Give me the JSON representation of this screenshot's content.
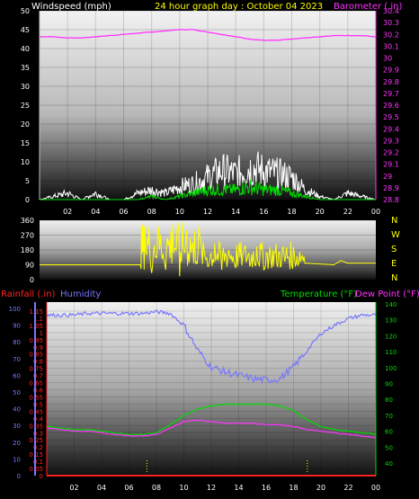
{
  "header": {
    "left": "Windspeed (mph)",
    "center": "24 hour graph day : October 04 2023",
    "right": "Barometer (.in)"
  },
  "chart_data": [
    {
      "type": "line",
      "panel": "wind-barometer",
      "x_ticks": [
        "02",
        "04",
        "06",
        "08",
        "10",
        "12",
        "14",
        "16",
        "18",
        "20",
        "22",
        "00"
      ],
      "x": [
        0,
        1,
        2,
        3,
        4,
        5,
        6,
        7,
        8,
        9,
        10,
        11,
        12,
        13,
        14,
        15,
        16,
        17,
        18,
        19,
        20,
        21,
        22,
        23,
        24
      ],
      "left_axis": {
        "label": "Windspeed (mph)",
        "ticks": [
          0,
          5,
          10,
          15,
          20,
          25,
          30,
          35,
          40,
          45,
          50
        ],
        "range": [
          0,
          50
        ]
      },
      "right_axis": {
        "label": "Barometer (.in)",
        "ticks": [
          "28.8",
          "28.9",
          "29",
          "29.1",
          "29.2",
          "29.3",
          "29.4",
          "29.5",
          "29.6",
          "29.7",
          "29.8",
          "29.9",
          "30",
          "30.1",
          "30.2",
          "30.3",
          "30.4"
        ],
        "range": [
          28.8,
          30.4
        ]
      },
      "series": [
        {
          "name": "Barometer (.in)",
          "axis": "right",
          "color": "#ff33ff",
          "values": [
            30.18,
            30.18,
            30.17,
            30.17,
            30.18,
            30.19,
            30.2,
            30.21,
            30.22,
            30.23,
            30.24,
            30.24,
            30.22,
            30.2,
            30.18,
            30.16,
            30.15,
            30.15,
            30.16,
            30.17,
            30.18,
            30.19,
            30.19,
            30.19,
            30.18
          ]
        },
        {
          "name": "wind-gust",
          "axis": "left",
          "color": "#ffffff",
          "values": [
            0,
            1,
            2,
            0,
            2,
            0,
            0,
            2,
            3,
            2,
            4,
            5,
            7,
            9,
            8,
            10,
            9,
            8,
            7,
            3,
            1,
            0,
            2,
            1,
            0
          ]
        },
        {
          "name": "wind-avg",
          "axis": "left",
          "color": "#00dd00",
          "values": [
            0,
            0,
            0,
            0,
            0,
            0,
            0,
            0,
            1,
            0,
            1,
            2,
            3,
            3,
            3,
            4,
            3,
            3,
            2,
            1,
            0,
            0,
            0,
            0,
            0
          ]
        }
      ]
    },
    {
      "type": "line",
      "panel": "wind-direction",
      "x_ticks": [],
      "left_axis": {
        "ticks": [
          0,
          90,
          180,
          270,
          360
        ],
        "range": [
          0,
          360
        ]
      },
      "right_labels": [
        "N",
        "W",
        "S",
        "E",
        "N"
      ],
      "series": [
        {
          "name": "wind-direction",
          "color": "#ffff00",
          "x": [
            0,
            7.2,
            7.5,
            8,
            8.5,
            9,
            9.5,
            10,
            10.5,
            11,
            11.5,
            12,
            12.5,
            13,
            13.5,
            14,
            14.5,
            15,
            15.5,
            16,
            16.5,
            17,
            17.5,
            18,
            18.5,
            19,
            20,
            21,
            21.5,
            22,
            24
          ],
          "values": [
            90,
            90,
            320,
            40,
            300,
            60,
            330,
            20,
            300,
            100,
            250,
            80,
            220,
            60,
            180,
            70,
            150,
            80,
            200,
            60,
            120,
            80,
            110,
            90,
            100,
            100,
            95,
            90,
            115,
            100,
            100
          ]
        }
      ]
    },
    {
      "type": "line",
      "panel": "rain-humidity-temperature",
      "x_ticks": [
        "02",
        "04",
        "06",
        "08",
        "10",
        "12",
        "14",
        "16",
        "18",
        "20",
        "22",
        "00"
      ],
      "left_label_rain": "Rainfall (.in)",
      "left_label_humidity": "Humidity",
      "right_label_temp": "Temperature (°F)",
      "right_label_dew": "Dew Point (°F)",
      "rain_axis": {
        "ticks": [
          "0",
          "0.05",
          "0.1",
          "0.15",
          "0.2",
          "0.25",
          "0.3",
          "0.35",
          "0.4",
          "0.45",
          "0.5",
          "0.55",
          "0.6",
          "0.65",
          "0.7",
          "0.75",
          "0.8",
          "0.85",
          "0.9",
          "0.95",
          "1",
          "1.05",
          "1.1",
          "1.15"
        ],
        "range": [
          0,
          1.15
        ]
      },
      "humidity_axis": {
        "ticks": [
          0,
          10,
          20,
          30,
          40,
          50,
          60,
          70,
          80,
          90,
          100
        ],
        "range": [
          0,
          100
        ]
      },
      "temp_axis": {
        "ticks": [
          40,
          50,
          60,
          70,
          80,
          90,
          100,
          110,
          120,
          130,
          140
        ],
        "range": [
          40,
          140
        ]
      },
      "series": [
        {
          "name": "Humidity",
          "axis": "humidity",
          "color": "#7777ff",
          "values": [
            96,
            96,
            96,
            97,
            97,
            97,
            97,
            97,
            98,
            97,
            90,
            75,
            65,
            62,
            60,
            58,
            57,
            58,
            65,
            75,
            85,
            90,
            94,
            96,
            96
          ]
        },
        {
          "name": "Temperature (°F)",
          "axis": "temp",
          "color": "#00dd00",
          "values": [
            63,
            62,
            61,
            61,
            60,
            59,
            58,
            58,
            59,
            64,
            70,
            74,
            76,
            77,
            77,
            77,
            77,
            76,
            73,
            67,
            63,
            61,
            60,
            59,
            58
          ]
        },
        {
          "name": "Dew Point (°F)",
          "axis": "temp",
          "color": "#ff33ff",
          "values": [
            62,
            61,
            60,
            60,
            59,
            58,
            57,
            57,
            58,
            62,
            66,
            67,
            66,
            65,
            65,
            65,
            64,
            64,
            63,
            61,
            60,
            59,
            58,
            57,
            56
          ]
        },
        {
          "name": "Rainfall (.in)",
          "axis": "rain",
          "color": "#ff2222",
          "values": [
            0,
            0,
            0,
            0,
            0,
            0,
            0,
            0,
            0,
            0,
            0,
            0,
            0,
            0,
            0,
            0,
            0,
            0,
            0,
            0,
            0,
            0,
            0,
            0,
            0
          ]
        }
      ],
      "markers_x": [
        7.3,
        19
      ]
    }
  ],
  "colors": {
    "wind_label": "#ffffff",
    "title": "#ffff00",
    "baro": "#ff33ff",
    "rain": "#ff2222",
    "humidity": "#7777ff",
    "temp": "#00dd00",
    "dew": "#ff33ff",
    "dir": "#ffff00"
  }
}
